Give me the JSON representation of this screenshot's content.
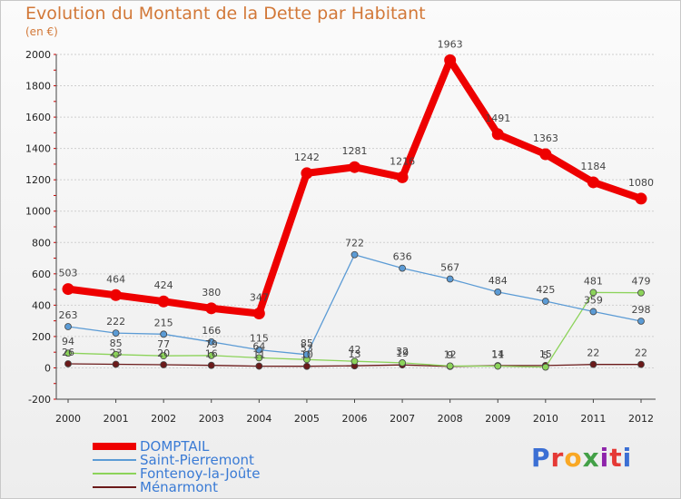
{
  "title": "Evolution du Montant de la Dette par Habitant",
  "subtitle": "(en €)",
  "logo": "Proxiti",
  "chart_data": {
    "type": "line",
    "title": "Evolution du Montant de la Dette par Habitant",
    "subtitle": "(en €)",
    "xlabel": "",
    "ylabel": "",
    "ylim": [
      -200,
      2000
    ],
    "yticks": [
      -200,
      0,
      200,
      400,
      600,
      800,
      1000,
      1200,
      1400,
      1600,
      1800,
      2000
    ],
    "grid": true,
    "legend_position": "bottom-left",
    "x": [
      "2000",
      "2001",
      "2002",
      "2003",
      "2004",
      "2005",
      "2006",
      "2007",
      "2008",
      "2009",
      "2010",
      "2011",
      "2012"
    ],
    "series": [
      {
        "name": "DOMPTAIL",
        "color": "#ee0000",
        "values": [
          503,
          464,
          424,
          380,
          347,
          1242,
          1281,
          1216,
          1963,
          1491,
          1363,
          1184,
          1080
        ]
      },
      {
        "name": "Saint-Pierremont",
        "color": "#5b9bd5",
        "values": [
          263,
          222,
          215,
          166,
          115,
          85,
          722,
          636,
          567,
          484,
          425,
          359,
          298
        ]
      },
      {
        "name": "Fontenoy-la-Joûte",
        "color": "#8cd35a",
        "values": [
          94,
          85,
          77,
          79,
          64,
          53,
          42,
          32,
          12,
          11,
          5,
          481,
          479
        ]
      },
      {
        "name": "Ménarmont",
        "color": "#6b1a1a",
        "values": [
          26,
          23,
          20,
          16,
          11,
          10,
          13,
          19,
          9,
          14,
          15,
          22,
          22
        ]
      }
    ]
  }
}
